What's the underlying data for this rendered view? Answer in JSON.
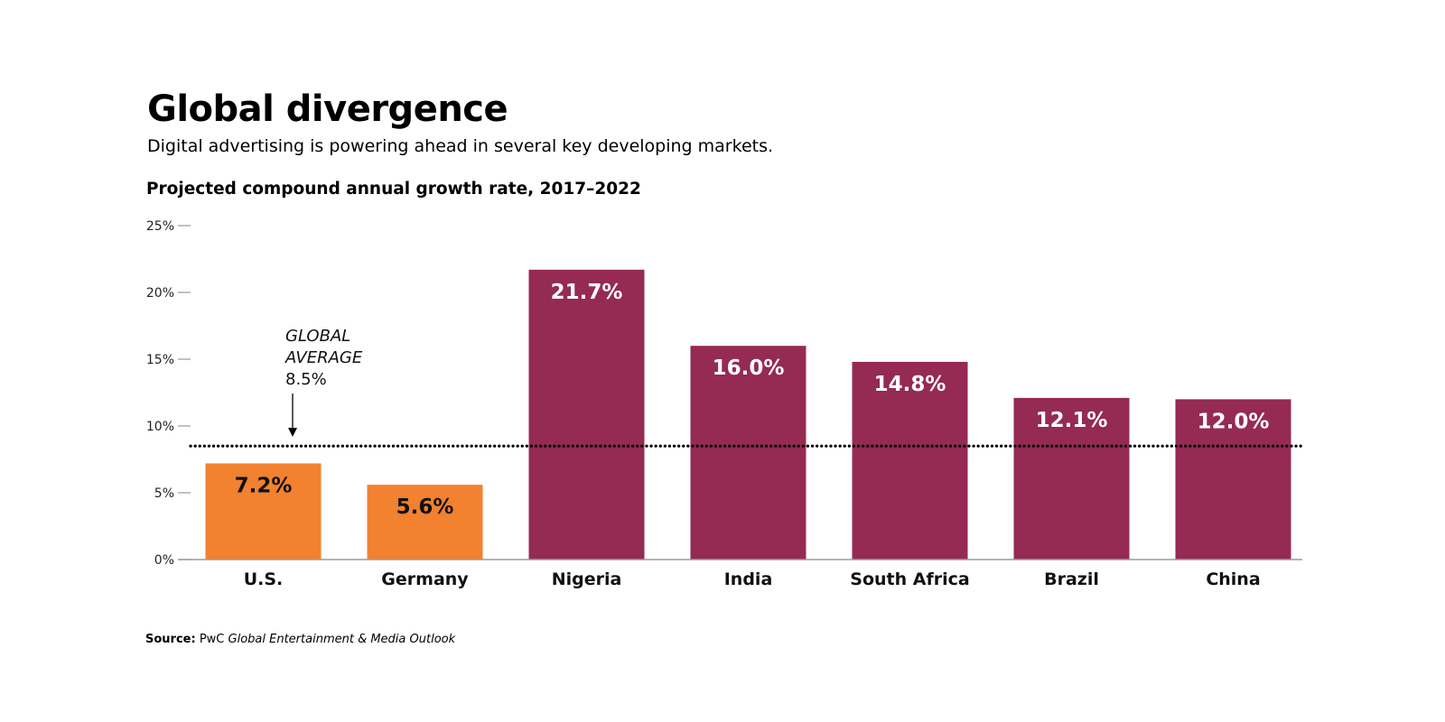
{
  "header": {
    "title": "Global divergence",
    "subtitle": "Digital advertising is powering ahead in several key developing markets."
  },
  "source": {
    "label": "Source:",
    "publisher": "PwC",
    "publication": "Global Entertainment & Media Outlook"
  },
  "colors": {
    "developed": "#f28130",
    "developing": "#952a53",
    "developed_label": "#111111",
    "developing_label": "#ffffff",
    "axis": "#9a9a9a",
    "average_line": "#000000"
  },
  "chart_data": {
    "type": "bar",
    "title": "Projected compound annual growth rate, 2017–2022",
    "categories": [
      "U.S.",
      "Germany",
      "Nigeria",
      "India",
      "South Africa",
      "Brazil",
      "China"
    ],
    "values": [
      7.2,
      5.6,
      21.7,
      16.0,
      14.8,
      12.1,
      12.0
    ],
    "value_labels": [
      "7.2%",
      "5.6%",
      "21.7%",
      "16.0%",
      "14.8%",
      "12.1%",
      "12.0%"
    ],
    "groups": [
      "developed",
      "developed",
      "developing",
      "developing",
      "developing",
      "developing",
      "developing"
    ],
    "ylim": [
      0,
      25
    ],
    "yticks": [
      0,
      5,
      10,
      15,
      20,
      25
    ],
    "ytick_labels": [
      "0%",
      "5%",
      "10%",
      "15%",
      "20%",
      "25%"
    ],
    "xlabel": "",
    "ylabel": "",
    "grid": false,
    "reference_line": {
      "value": 8.5,
      "label_line1": "GLOBAL",
      "label_line2": "AVERAGE",
      "value_label": "8.5%",
      "style": "dotted"
    }
  }
}
